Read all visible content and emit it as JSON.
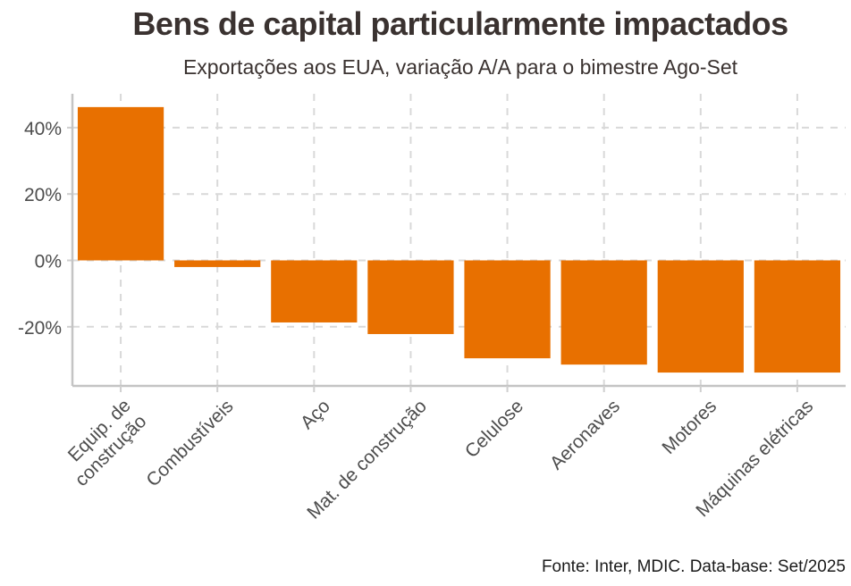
{
  "chart_data": {
    "type": "bar",
    "title": "Bens de capital particularmente impactados",
    "subtitle": "Exportações aos EUA, variação A/A para o bimestre Ago-Set",
    "caption": "Fonte: Inter, MDIC. Data-base: Set/2025",
    "xlabel": "",
    "ylabel": "",
    "categories": [
      "Equip. de\nconstrução",
      "Combustíveis",
      "Aço",
      "Mat. de construção",
      "Celulose",
      "Aeronaves",
      "Motores",
      "Máquinas elétricas"
    ],
    "values": [
      46.2,
      -2.0,
      -18.7,
      -22.2,
      -29.5,
      -31.4,
      -33.8,
      -33.8
    ],
    "unit": "%",
    "ylim": [
      -37,
      50
    ],
    "yticks": [
      40,
      20,
      0,
      -20
    ],
    "ytick_labels": [
      "40%",
      "20%",
      "0%",
      "-20%"
    ],
    "grid": true,
    "bar_color": "#E87000",
    "legend": "none"
  }
}
